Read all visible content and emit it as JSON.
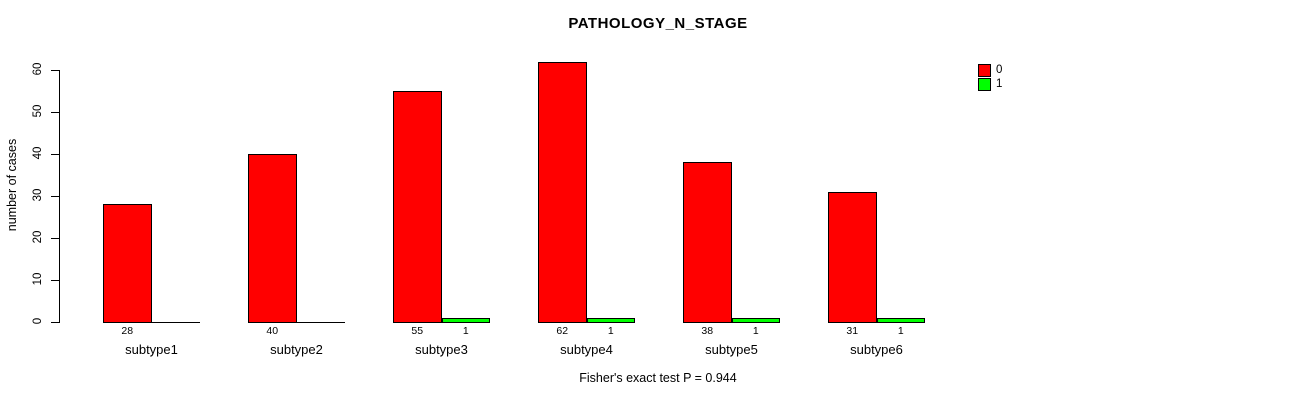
{
  "title": "PATHOLOGY_N_STAGE",
  "footer": "Fisher's exact test P = 0.944",
  "colors": {
    "background": "#FFFFFF",
    "axis": "#000000",
    "text": "#000000",
    "series0": "#FF0000",
    "series1": "#00FF00"
  },
  "legend": {
    "position": "top-right",
    "entries": [
      {
        "label": "0",
        "color": "#FF0000"
      },
      {
        "label": "1",
        "color": "#00FF00"
      }
    ]
  },
  "chart_data": {
    "type": "bar",
    "title": "PATHOLOGY_N_STAGE",
    "xlabel": "",
    "ylabel": "number of cases",
    "categories": [
      "subtype1",
      "subtype2",
      "subtype3",
      "subtype4",
      "subtype5",
      "subtype6"
    ],
    "series": [
      {
        "name": "0",
        "color": "#FF0000",
        "values": [
          28,
          40,
          55,
          62,
          38,
          31
        ]
      },
      {
        "name": "1",
        "color": "#00FF00",
        "values": [
          0,
          0,
          1,
          1,
          1,
          1
        ]
      }
    ],
    "value_labels_shown": [
      [
        "28",
        "40",
        "55",
        "62",
        "38",
        "31"
      ],
      [
        "",
        "",
        "1",
        "1",
        "1",
        "1"
      ]
    ],
    "ylim": [
      0,
      60
    ],
    "yticks": [
      0,
      10,
      20,
      30,
      40,
      50,
      60
    ],
    "grid": false,
    "legend_position": "top-right",
    "annotation": "Fisher's exact test P = 0.944"
  }
}
